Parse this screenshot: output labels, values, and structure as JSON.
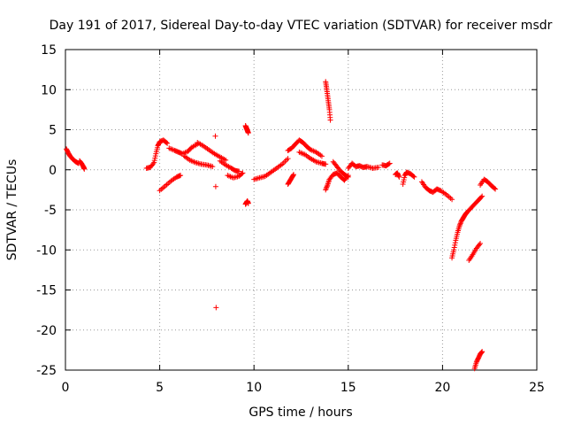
{
  "chart_data": {
    "type": "scatter",
    "title": "Day 191 of 2017, Sidereal Day-to-day VTEC variation (SDTVAR) for receiver msdr",
    "xlabel": "GPS time / hours",
    "ylabel": "SDTVAR / TECUs",
    "xlim": [
      0,
      25
    ],
    "ylim": [
      -25,
      15
    ],
    "xticks": [
      "0",
      "5",
      "10",
      "15",
      "20",
      "25"
    ],
    "yticks": [
      "15",
      "10",
      "5",
      "0",
      "-5",
      "-10",
      "-15",
      "-20",
      "-25"
    ],
    "grid": true,
    "marker": "+",
    "color": "#ff0000",
    "segments": [
      {
        "x": [
          0.05,
          0.15,
          0.25,
          0.4,
          0.55,
          0.7
        ],
        "y": [
          2.6,
          2.1,
          1.7,
          1.3,
          1.0,
          0.8
        ]
      },
      {
        "x": [
          0.75,
          0.85,
          0.95,
          1.0
        ],
        "y": [
          1.1,
          0.8,
          0.4,
          0.1
        ]
      },
      {
        "x": [
          4.3,
          4.5,
          4.7,
          4.8,
          4.9,
          5.0,
          5.2,
          5.4
        ],
        "y": [
          0.2,
          0.3,
          0.9,
          2.0,
          3.0,
          3.5,
          3.7,
          3.3
        ]
      },
      {
        "x": [
          5.0,
          5.3,
          5.6,
          5.9,
          6.1
        ],
        "y": [
          -2.6,
          -2.0,
          -1.4,
          -0.9,
          -0.7
        ]
      },
      {
        "x": [
          5.5,
          5.8,
          6.0,
          6.2,
          6.5,
          6.7,
          7.0
        ],
        "y": [
          2.7,
          2.4,
          2.2,
          2.0,
          2.3,
          2.8,
          3.2
        ]
      },
      {
        "x": [
          6.3,
          6.6,
          6.9,
          7.2,
          7.5,
          7.8
        ],
        "y": [
          1.7,
          1.2,
          0.9,
          0.7,
          0.6,
          0.4
        ]
      },
      {
        "x": [
          7.0,
          7.3,
          7.6,
          7.9,
          8.2,
          8.5
        ],
        "y": [
          3.4,
          3.0,
          2.5,
          2.0,
          1.6,
          1.2
        ]
      },
      {
        "x": [
          8.2,
          8.5,
          8.8,
          9.0,
          9.2
        ],
        "y": [
          1.1,
          0.6,
          0.2,
          -0.1,
          -0.2
        ]
      },
      {
        "x": [
          8.6,
          8.9,
          9.2,
          9.4
        ],
        "y": [
          -0.7,
          -1.0,
          -0.8,
          -0.4
        ]
      },
      {
        "x": [
          9.55,
          9.6,
          9.65,
          9.7
        ],
        "y": [
          5.5,
          5.2,
          4.9,
          4.6
        ]
      },
      {
        "x": [
          9.55,
          9.6,
          9.65,
          9.7
        ],
        "y": [
          -4.3,
          -4.1,
          -3.9,
          -4.2
        ]
      },
      {
        "x": [
          10.0,
          10.3,
          10.6,
          10.9,
          11.2,
          11.5,
          11.8
        ],
        "y": [
          -1.2,
          -1.0,
          -0.8,
          -0.3,
          0.2,
          0.7,
          1.4
        ]
      },
      {
        "x": [
          11.8,
          12.0,
          12.2,
          12.4,
          12.6,
          12.8,
          13.0,
          13.3,
          13.6
        ],
        "y": [
          2.4,
          2.7,
          3.2,
          3.7,
          3.4,
          2.9,
          2.5,
          2.2,
          1.7
        ]
      },
      {
        "x": [
          12.4,
          12.7,
          13.0,
          13.3,
          13.6,
          13.8
        ],
        "y": [
          2.2,
          1.9,
          1.4,
          1.0,
          0.8,
          0.7
        ]
      },
      {
        "x": [
          11.8,
          11.9,
          12.0,
          12.1
        ],
        "y": [
          -1.8,
          -1.4,
          -1.0,
          -0.6
        ]
      },
      {
        "x": [
          13.8,
          13.85,
          13.9,
          13.95,
          14.0,
          14.05
        ],
        "y": [
          11.0,
          10.2,
          9.3,
          8.4,
          7.5,
          6.2
        ]
      },
      {
        "x": [
          13.8,
          13.9,
          14.0,
          14.2,
          14.4,
          14.6,
          14.8,
          15.0
        ],
        "y": [
          -2.5,
          -1.9,
          -1.2,
          -0.6,
          -0.4,
          -0.9,
          -1.3,
          -0.7
        ]
      },
      {
        "x": [
          14.2,
          14.4,
          14.6,
          14.8,
          15.0
        ],
        "y": [
          1.0,
          0.4,
          -0.2,
          -0.6,
          -0.9
        ]
      },
      {
        "x": [
          15.0,
          15.2,
          15.4,
          15.6,
          15.8,
          16.0,
          16.3,
          16.6
        ],
        "y": [
          0.2,
          0.8,
          0.4,
          0.5,
          0.3,
          0.4,
          0.2,
          0.3
        ]
      },
      {
        "x": [
          16.8,
          17.0,
          17.2
        ],
        "y": [
          0.6,
          0.5,
          0.8
        ]
      },
      {
        "x": [
          17.5,
          17.6,
          17.7
        ],
        "y": [
          -0.6,
          -0.4,
          -0.9
        ]
      },
      {
        "x": [
          17.9,
          18.0,
          18.1,
          18.3,
          18.5
        ],
        "y": [
          -1.8,
          -0.7,
          -0.3,
          -0.5,
          -0.9
        ]
      },
      {
        "x": [
          18.9,
          19.1,
          19.3,
          19.5,
          19.7,
          19.9,
          20.2,
          20.5
        ],
        "y": [
          -1.5,
          -2.2,
          -2.6,
          -2.8,
          -2.4,
          -2.6,
          -3.1,
          -3.7
        ]
      },
      {
        "x": [
          20.5,
          20.6,
          20.7,
          20.8,
          20.9,
          21.0,
          21.1,
          21.2,
          21.3,
          21.5,
          21.7,
          21.9,
          22.1
        ],
        "y": [
          -11.0,
          -10.0,
          -8.8,
          -7.8,
          -7.0,
          -6.4,
          -6.0,
          -5.6,
          -5.3,
          -4.8,
          -4.3,
          -3.8,
          -3.3
        ]
      },
      {
        "x": [
          21.4,
          21.6,
          21.8,
          22.0
        ],
        "y": [
          -11.3,
          -10.6,
          -9.8,
          -9.2
        ]
      },
      {
        "x": [
          21.7,
          21.8,
          21.9,
          22.0,
          22.1
        ],
        "y": [
          -24.8,
          -24.0,
          -23.5,
          -23.0,
          -22.7
        ]
      },
      {
        "x": [
          22.0,
          22.2,
          22.4,
          22.6,
          22.8
        ],
        "y": [
          -1.9,
          -1.2,
          -1.5,
          -2.0,
          -2.4
        ]
      },
      {
        "x": [
          7.95,
          7.97,
          7.99
        ],
        "y": [
          4.2,
          -2.1,
          -17.2
        ]
      }
    ]
  }
}
